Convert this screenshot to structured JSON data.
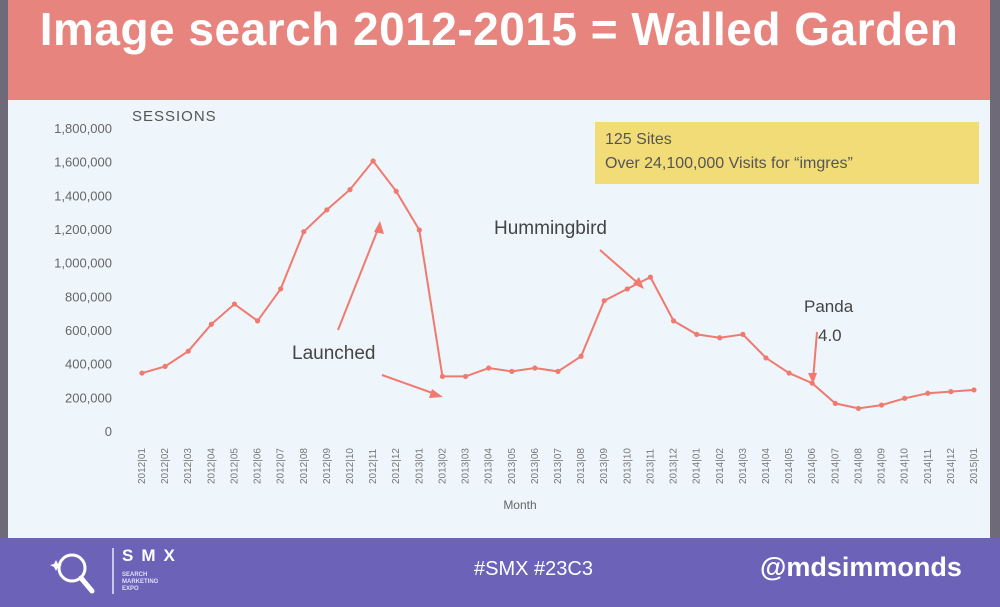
{
  "slide": {
    "title": "Image search 2012-2015 = Walled Garden"
  },
  "chart_data": {
    "type": "line",
    "ylabel": "SESSIONS",
    "xlabel": "Month",
    "ylim": [
      0,
      1800000
    ],
    "y_ticks": [
      "0",
      "200,000",
      "400,000",
      "600,000",
      "800,000",
      "1,000,000",
      "1,200,000",
      "1,400,000",
      "1,600,000",
      "1,800,000"
    ],
    "y_tick_values": [
      0,
      200000,
      400000,
      600000,
      800000,
      1000000,
      1200000,
      1400000,
      1600000,
      1800000
    ],
    "categories": [
      "2012|01",
      "2012|02",
      "2012|03",
      "2012|04",
      "2012|05",
      "2012|06",
      "2012|07",
      "2012|08",
      "2012|09",
      "2012|10",
      "2012|11",
      "2012|12",
      "2013|01",
      "2013|02",
      "2013|03",
      "2013|04",
      "2013|05",
      "2013|06",
      "2013|07",
      "2013|08",
      "2013|09",
      "2013|10",
      "2013|11",
      "2013|12",
      "2014|01",
      "2014|02",
      "2014|03",
      "2014|04",
      "2014|05",
      "2014|06",
      "2014|07",
      "2014|08",
      "2014|09",
      "2014|10",
      "2014|11",
      "2014|12",
      "2015|01"
    ],
    "values": [
      350000,
      390000,
      480000,
      640000,
      760000,
      660000,
      850000,
      1190000,
      1320000,
      1440000,
      1610000,
      1430000,
      1200000,
      330000,
      330000,
      380000,
      360000,
      380000,
      360000,
      450000,
      780000,
      850000,
      920000,
      660000,
      580000,
      560000,
      580000,
      440000,
      350000,
      290000,
      170000,
      140000,
      160000,
      200000,
      230000,
      240000,
      250000
    ],
    "series_color": "#f07a70",
    "grid": false,
    "info_box": {
      "line1": "125 Sites",
      "line2": "Over 24,100,000 Visits for “imgres”"
    },
    "annotations": [
      {
        "id": "launched",
        "text": "Launched"
      },
      {
        "id": "hummingbird",
        "text": "Hummingbird"
      },
      {
        "id": "panda",
        "text_line1": "Panda",
        "text_line2": "4.0"
      }
    ]
  },
  "footer": {
    "brand": "SMX",
    "brand_sub": [
      "SEARCH",
      "MARKETING",
      "EXPO"
    ],
    "hashtags": "#SMX #23C3",
    "handle": "@mdsimmonds"
  }
}
